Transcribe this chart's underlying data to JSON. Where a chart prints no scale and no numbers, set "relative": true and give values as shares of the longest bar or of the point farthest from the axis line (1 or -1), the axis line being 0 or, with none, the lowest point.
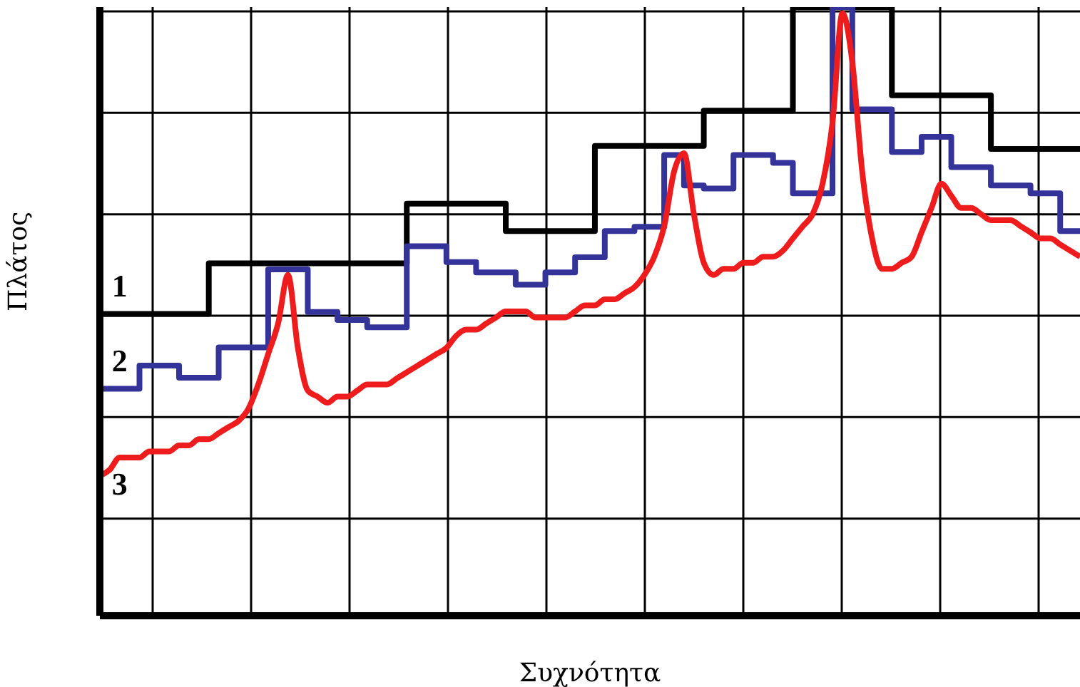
{
  "chart_data": {
    "type": "step",
    "relative": true,
    "xlabel": "Συχνότητα",
    "ylabel": "Πλάτος",
    "grid": true,
    "marker": "none",
    "categories": [
      null,
      null,
      null,
      null,
      null,
      null,
      null,
      null,
      null,
      null,
      null,
      null,
      null,
      null,
      null,
      null,
      null,
      null,
      null,
      null,
      null,
      null,
      null,
      null,
      null,
      null,
      null,
      null,
      null,
      null,
      null,
      null,
      null,
      null,
      null,
      null,
      null,
      null,
      null,
      null,
      null,
      null,
      null,
      null,
      null,
      null,
      null,
      null,
      null,
      null,
      null,
      null,
      null,
      null,
      null,
      null,
      null,
      null,
      null,
      null,
      null,
      null,
      null,
      null,
      null,
      null,
      null,
      null,
      null,
      null,
      null,
      null,
      null,
      null,
      null,
      null,
      null,
      null,
      null,
      null,
      null,
      null,
      null,
      null,
      null,
      null,
      null,
      null,
      null,
      null,
      null,
      null,
      null,
      null,
      null,
      null,
      null,
      null,
      null,
      null
    ],
    "series": [
      {
        "name": "1",
        "color": "#000000",
        "values": [
          0.496,
          0.496,
          0.496,
          0.496,
          0.496,
          0.496,
          0.496,
          0.496,
          0.496,
          0.496,
          0.496,
          0.579,
          0.579,
          0.579,
          0.579,
          0.579,
          0.579,
          0.579,
          0.579,
          0.579,
          0.579,
          0.579,
          0.579,
          0.579,
          0.579,
          0.579,
          0.579,
          0.579,
          0.579,
          0.579,
          0.579,
          0.677,
          0.677,
          0.677,
          0.677,
          0.677,
          0.677,
          0.677,
          0.677,
          0.677,
          0.677,
          0.632,
          0.632,
          0.632,
          0.632,
          0.632,
          0.632,
          0.632,
          0.632,
          0.632,
          0.772,
          0.772,
          0.772,
          0.772,
          0.772,
          0.772,
          0.772,
          0.772,
          0.772,
          0.772,
          0.772,
          0.83,
          0.83,
          0.83,
          0.83,
          0.83,
          0.83,
          0.83,
          0.83,
          0.83,
          1,
          1,
          1,
          1,
          1,
          1,
          1,
          1,
          1,
          1,
          0.855,
          0.855,
          0.855,
          0.855,
          0.855,
          0.855,
          0.855,
          0.855,
          0.855,
          0.855,
          0.767,
          0.767,
          0.767,
          0.767,
          0.767,
          0.767,
          0.767,
          0.767,
          0.767,
          0.767
        ]
      },
      {
        "name": "2",
        "color": "#333399",
        "values": [
          0.373,
          0.373,
          0.373,
          0.373,
          0.411,
          0.411,
          0.411,
          0.411,
          0.391,
          0.391,
          0.391,
          0.391,
          0.441,
          0.441,
          0.441,
          0.441,
          0.441,
          0.569,
          0.569,
          0.569,
          0.569,
          0.499,
          0.499,
          0.499,
          0.486,
          0.486,
          0.486,
          0.474,
          0.474,
          0.474,
          0.474,
          0.607,
          0.607,
          0.607,
          0.607,
          0.581,
          0.581,
          0.581,
          0.564,
          0.564,
          0.564,
          0.564,
          0.544,
          0.544,
          0.544,
          0.564,
          0.564,
          0.564,
          0.589,
          0.589,
          0.589,
          0.632,
          0.632,
          0.632,
          0.639,
          0.639,
          0.639,
          0.757,
          0.757,
          0.707,
          0.707,
          0.702,
          0.702,
          0.702,
          0.757,
          0.757,
          0.757,
          0.757,
          0.744,
          0.744,
          0.694,
          0.694,
          0.694,
          0.694,
          1,
          1,
          0.832,
          0.832,
          0.832,
          0.832,
          0.762,
          0.762,
          0.762,
          0.787,
          0.787,
          0.787,
          0.737,
          0.737,
          0.737,
          0.737,
          0.707,
          0.707,
          0.707,
          0.707,
          0.694,
          0.694,
          0.694,
          0.632,
          0.632,
          0.632
        ]
      },
      {
        "name": "3",
        "type": "line",
        "color": "#ee1c1c",
        "values": [
          0.23,
          0.24,
          0.26,
          0.26,
          0.26,
          0.27,
          0.27,
          0.27,
          0.28,
          0.28,
          0.29,
          0.29,
          0.3,
          0.31,
          0.32,
          0.34,
          0.38,
          0.43,
          0.48,
          0.56,
          0.44,
          0.37,
          0.36,
          0.35,
          0.36,
          0.36,
          0.37,
          0.38,
          0.38,
          0.38,
          0.39,
          0.4,
          0.41,
          0.42,
          0.43,
          0.44,
          0.46,
          0.47,
          0.47,
          0.48,
          0.49,
          0.5,
          0.5,
          0.5,
          0.49,
          0.49,
          0.49,
          0.49,
          0.5,
          0.51,
          0.51,
          0.52,
          0.52,
          0.53,
          0.54,
          0.56,
          0.59,
          0.64,
          0.73,
          0.76,
          0.66,
          0.58,
          0.56,
          0.57,
          0.57,
          0.58,
          0.58,
          0.59,
          0.59,
          0.6,
          0.62,
          0.64,
          0.66,
          0.71,
          0.81,
          0.99,
          0.91,
          0.73,
          0.62,
          0.57,
          0.57,
          0.58,
          0.59,
          0.63,
          0.67,
          0.71,
          0.69,
          0.67,
          0.67,
          0.66,
          0.65,
          0.65,
          0.65,
          0.64,
          0.63,
          0.62,
          0.62,
          0.61,
          0.6,
          0.59
        ]
      }
    ]
  }
}
